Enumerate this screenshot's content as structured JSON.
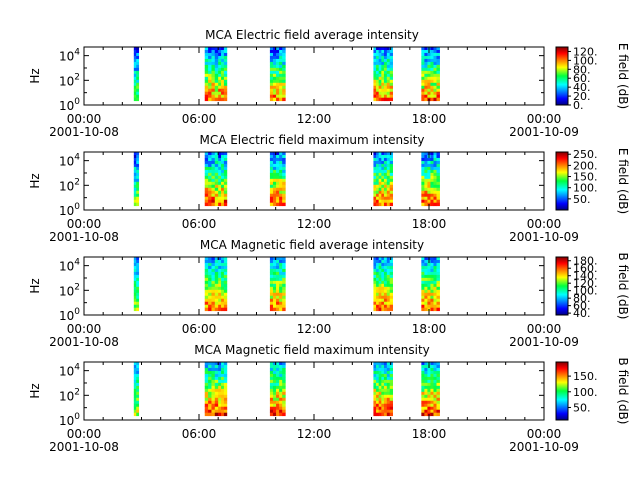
{
  "chart_data": [
    {
      "type": "heatmap",
      "title": "MCA  Electric field average intensity",
      "ylabel": "Hz",
      "colorbar_label": "E field (dB)",
      "colorbar_ticks": [
        "120.",
        "100.",
        "80.",
        "60.",
        "40.",
        "20.",
        "0."
      ],
      "colorbar_range": [
        0,
        130
      ],
      "y_ticks": [
        "10^0",
        "10^2",
        "10^4"
      ],
      "x_ticks": [
        "00:00",
        "06:00",
        "12:00",
        "18:00",
        "00:00"
      ],
      "x_dates": [
        "2001-10-08",
        "2001-10-09"
      ],
      "x_range_hours": [
        0,
        24
      ],
      "y_range_log10": [
        0,
        4.7
      ],
      "passes_hours": [
        [
          2.6,
          2.85
        ],
        [
          6.3,
          7.0
        ],
        [
          7.0,
          7.45
        ],
        [
          9.7,
          10.5
        ],
        [
          15.1,
          15.65
        ],
        [
          15.65,
          16.1
        ],
        [
          17.6,
          18.55
        ]
      ],
      "intensity_range": [
        10,
        120
      ]
    },
    {
      "type": "heatmap",
      "title": "MCA  Electric field maximum intensity",
      "ylabel": "Hz",
      "colorbar_label": "E field (dB)",
      "colorbar_ticks": [
        "250.",
        "200.",
        "150.",
        "100.",
        "50."
      ],
      "colorbar_range": [
        0,
        260
      ],
      "y_ticks": [
        "10^0",
        "10^2",
        "10^4"
      ],
      "x_ticks": [
        "00:00",
        "06:00",
        "12:00",
        "18:00",
        "00:00"
      ],
      "x_dates": [
        "2001-10-08",
        "2001-10-09"
      ],
      "x_range_hours": [
        0,
        24
      ],
      "y_range_log10": [
        0,
        4.7
      ],
      "passes_hours": [
        [
          2.6,
          2.85
        ],
        [
          6.3,
          7.0
        ],
        [
          7.0,
          7.45
        ],
        [
          9.7,
          10.5
        ],
        [
          15.1,
          15.65
        ],
        [
          15.65,
          16.1
        ],
        [
          17.6,
          18.55
        ]
      ],
      "intensity_range": [
        20,
        250
      ]
    },
    {
      "type": "heatmap",
      "title": "MCA  Magnetic field average intensity",
      "ylabel": "Hz",
      "colorbar_label": "B field (dB)",
      "colorbar_ticks": [
        "180.",
        "160.",
        "140.",
        "120.",
        "100.",
        "80.",
        "60.",
        "40."
      ],
      "colorbar_range": [
        35,
        190
      ],
      "y_ticks": [
        "10^0",
        "10^2",
        "10^4"
      ],
      "x_ticks": [
        "00:00",
        "06:00",
        "12:00",
        "18:00",
        "00:00"
      ],
      "x_dates": [
        "2001-10-08",
        "2001-10-09"
      ],
      "x_range_hours": [
        0,
        24
      ],
      "y_range_log10": [
        0,
        4.7
      ],
      "passes_hours": [
        [
          2.6,
          2.85
        ],
        [
          6.3,
          7.0
        ],
        [
          7.0,
          7.45
        ],
        [
          9.7,
          10.5
        ],
        [
          15.1,
          15.65
        ],
        [
          15.65,
          16.1
        ],
        [
          17.6,
          18.55
        ]
      ],
      "intensity_range": [
        60,
        175
      ]
    },
    {
      "type": "heatmap",
      "title": "MCA  Magnetic field maximum intensity",
      "ylabel": "Hz",
      "colorbar_label": "B field (dB)",
      "colorbar_ticks": [
        "150.",
        "100.",
        "50."
      ],
      "colorbar_range": [
        10,
        195
      ],
      "y_ticks": [
        "10^0",
        "10^2",
        "10^4"
      ],
      "x_ticks": [
        "00:00",
        "06:00",
        "12:00",
        "18:00",
        "00:00"
      ],
      "x_dates": [
        "2001-10-08",
        "2001-10-09"
      ],
      "x_range_hours": [
        0,
        24
      ],
      "y_range_log10": [
        0,
        4.7
      ],
      "passes_hours": [
        [
          2.6,
          2.85
        ],
        [
          6.3,
          7.0
        ],
        [
          7.0,
          7.45
        ],
        [
          9.7,
          10.5
        ],
        [
          15.1,
          15.65
        ],
        [
          15.65,
          16.1
        ],
        [
          17.6,
          18.55
        ]
      ],
      "intensity_range": [
        40,
        190
      ]
    }
  ]
}
